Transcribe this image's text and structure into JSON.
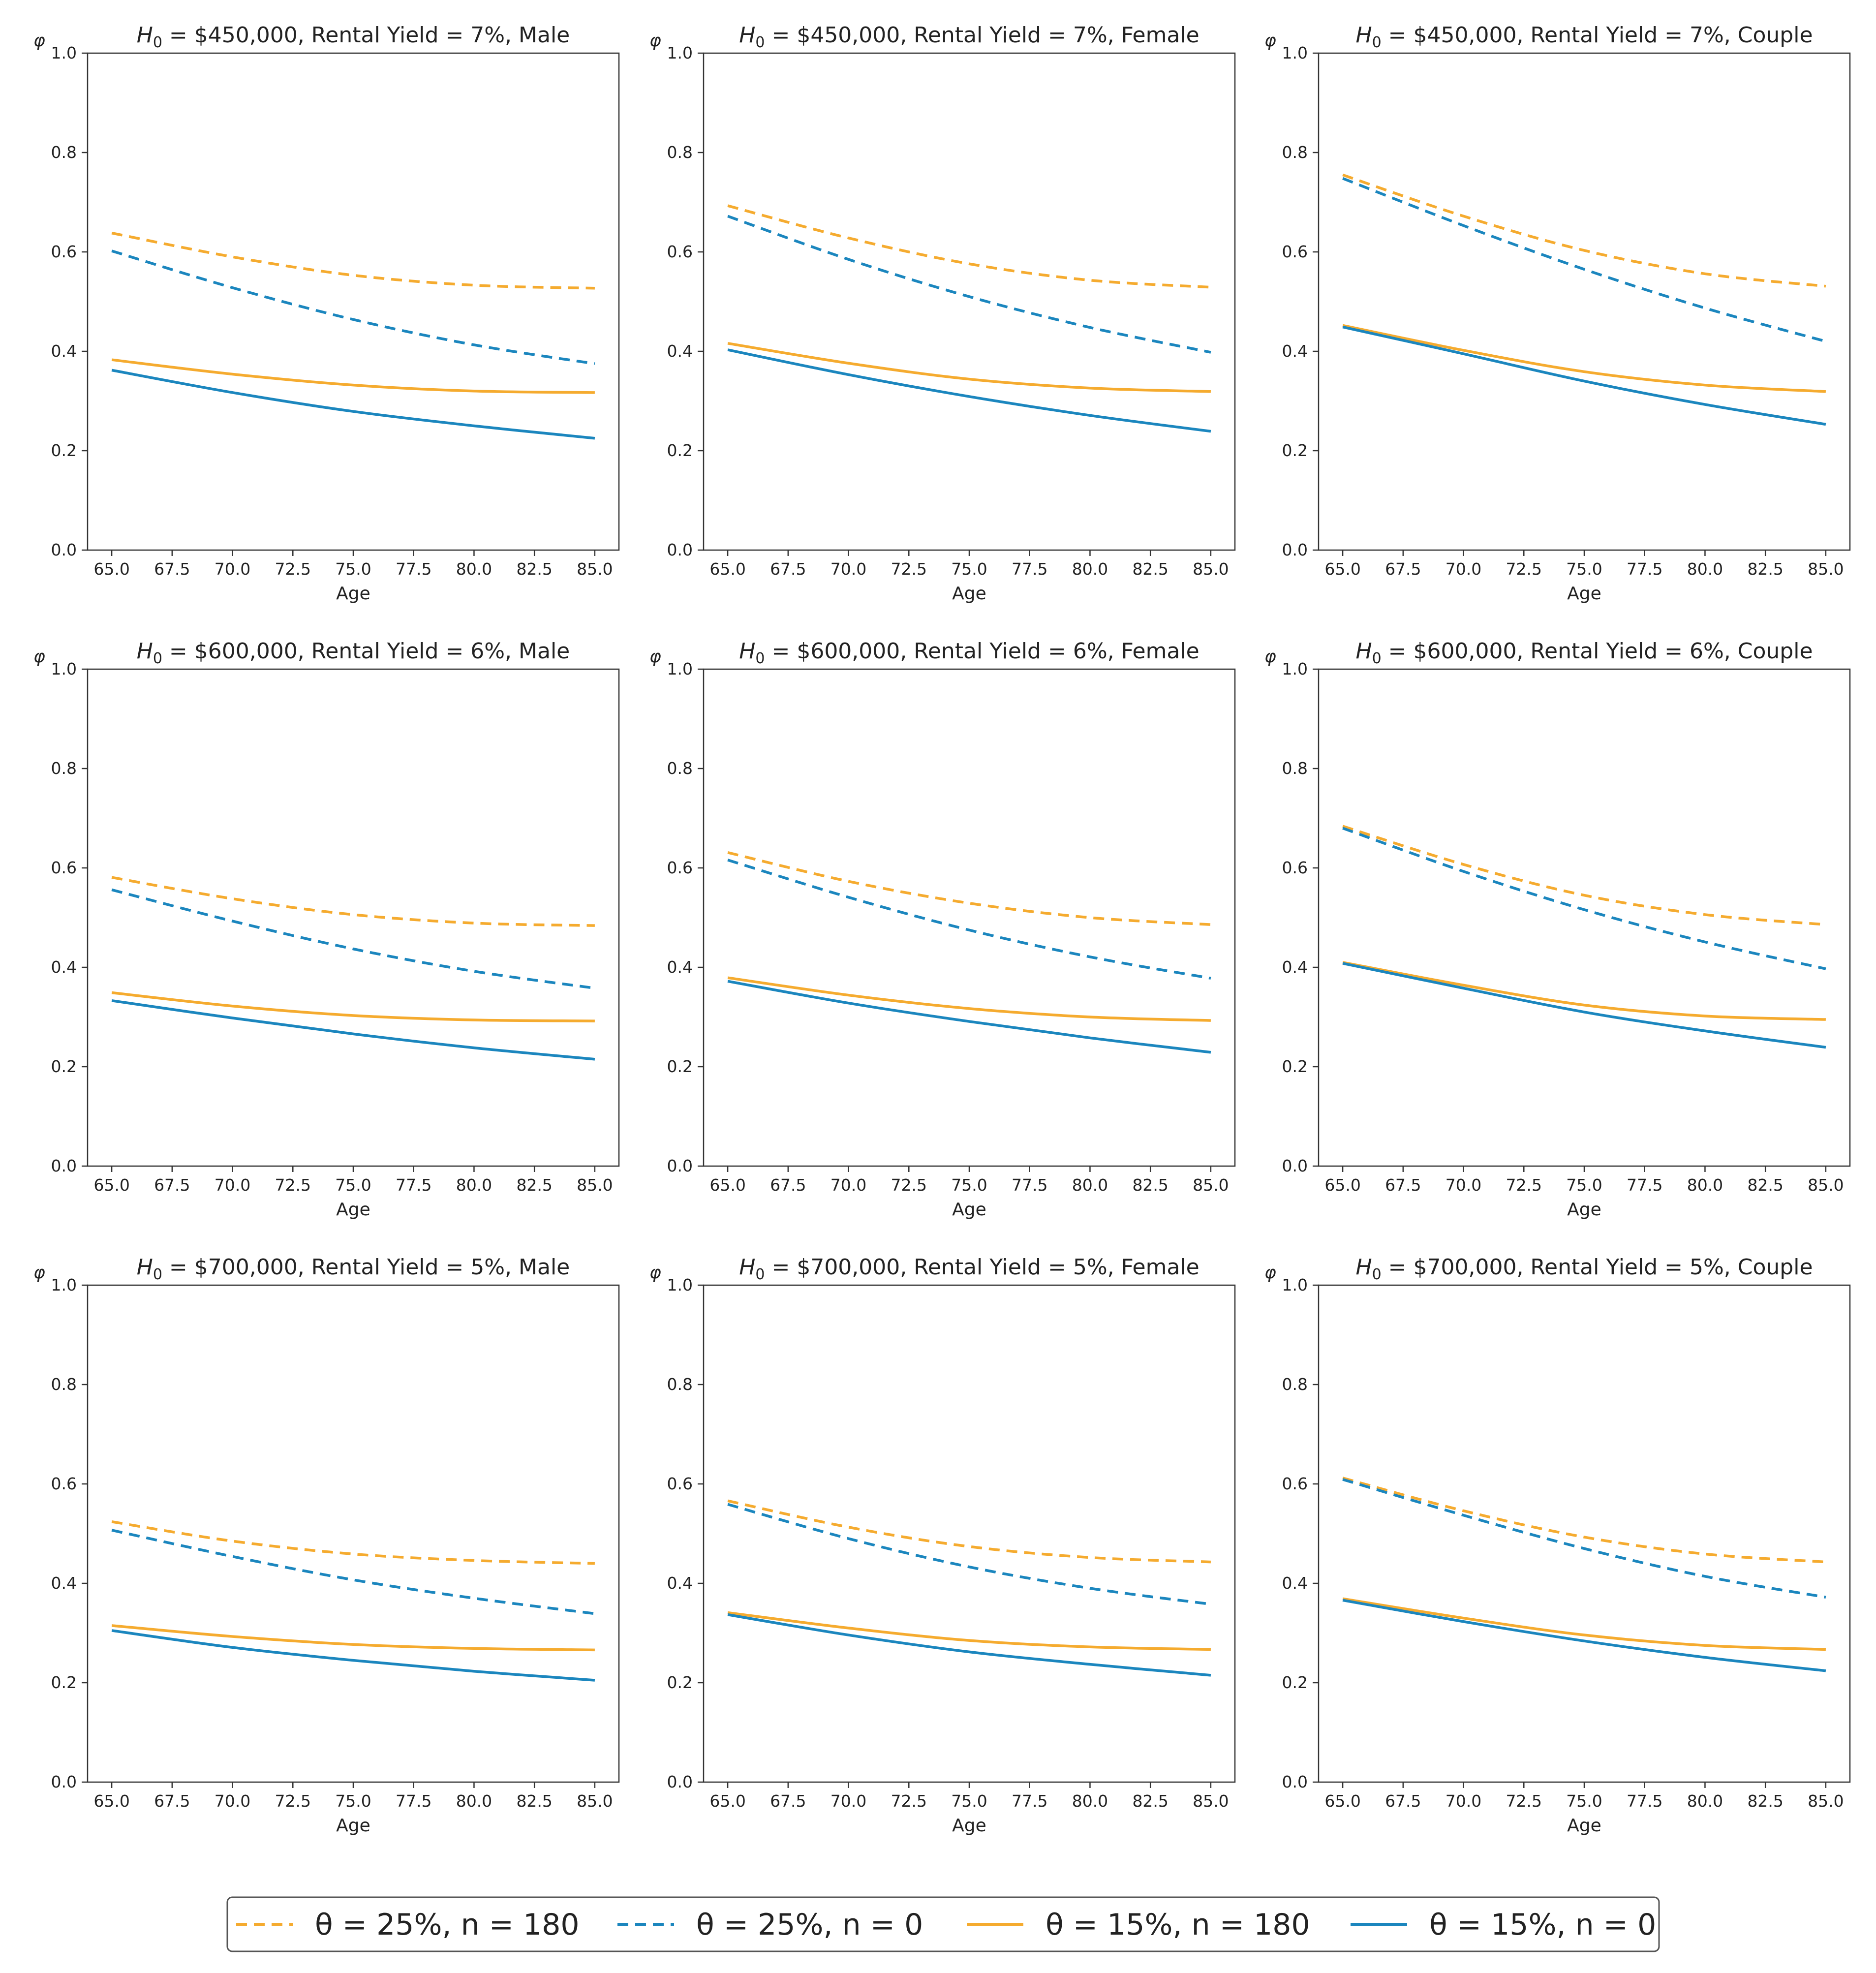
{
  "chart_data": [
    {
      "type": "line",
      "title_prefix": "H",
      "title_sub": "0",
      "title_rest": " = $450,000, Rental Yield = 7%, Male",
      "xlabel": "Age",
      "ylabel": "φ",
      "xlim": [
        64,
        86
      ],
      "ylim": [
        0,
        1.0
      ],
      "xticks": [
        "65.0",
        "67.5",
        "70.0",
        "72.5",
        "75.0",
        "77.5",
        "80.0",
        "82.5",
        "85.0"
      ],
      "yticks": [
        "0.0",
        "0.2",
        "0.4",
        "0.6",
        "0.8",
        "1.0"
      ],
      "x": [
        65,
        70,
        75,
        80,
        85
      ],
      "series": [
        {
          "name": "θ = 25%, n = 180",
          "values": [
            0.638,
            0.59,
            0.553,
            0.533,
            0.527
          ]
        },
        {
          "name": "θ = 25%, n = 0",
          "values": [
            0.602,
            0.528,
            0.464,
            0.413,
            0.375
          ]
        },
        {
          "name": "θ = 15%, n = 180",
          "values": [
            0.383,
            0.354,
            0.332,
            0.32,
            0.317
          ]
        },
        {
          "name": "θ = 15%, n = 0",
          "values": [
            0.362,
            0.317,
            0.279,
            0.25,
            0.225
          ]
        }
      ]
    },
    {
      "type": "line",
      "title_prefix": "H",
      "title_sub": "0",
      "title_rest": " = $450,000, Rental Yield = 7%, Female",
      "xlabel": "Age",
      "ylabel": "φ",
      "xlim": [
        64,
        86
      ],
      "ylim": [
        0,
        1.0
      ],
      "xticks": [
        "65.0",
        "67.5",
        "70.0",
        "72.5",
        "75.0",
        "77.5",
        "80.0",
        "82.5",
        "85.0"
      ],
      "yticks": [
        "0.0",
        "0.2",
        "0.4",
        "0.6",
        "0.8",
        "1.0"
      ],
      "x": [
        65,
        70,
        75,
        80,
        85
      ],
      "series": [
        {
          "name": "θ = 25%, n = 180",
          "values": [
            0.693,
            0.628,
            0.576,
            0.543,
            0.529
          ]
        },
        {
          "name": "θ = 25%, n = 0",
          "values": [
            0.672,
            0.585,
            0.51,
            0.448,
            0.398
          ]
        },
        {
          "name": "θ = 15%, n = 180",
          "values": [
            0.416,
            0.376,
            0.344,
            0.326,
            0.319
          ]
        },
        {
          "name": "θ = 15%, n = 0",
          "values": [
            0.403,
            0.353,
            0.309,
            0.271,
            0.239
          ]
        }
      ]
    },
    {
      "type": "line",
      "title_prefix": "H",
      "title_sub": "0",
      "title_rest": " = $450,000, Rental Yield = 7%, Couple",
      "xlabel": "Age",
      "ylabel": "φ",
      "xlim": [
        64,
        86
      ],
      "ylim": [
        0,
        1.0
      ],
      "xticks": [
        "65.0",
        "67.5",
        "70.0",
        "72.5",
        "75.0",
        "77.5",
        "80.0",
        "82.5",
        "85.0"
      ],
      "yticks": [
        "0.0",
        "0.2",
        "0.4",
        "0.6",
        "0.8",
        "1.0"
      ],
      "x": [
        65,
        70,
        75,
        80,
        85
      ],
      "series": [
        {
          "name": "θ = 25%, n = 180",
          "values": [
            0.755,
            0.672,
            0.603,
            0.556,
            0.531
          ]
        },
        {
          "name": "θ = 25%, n = 0",
          "values": [
            0.748,
            0.653,
            0.565,
            0.487,
            0.42
          ]
        },
        {
          "name": "θ = 15%, n = 180",
          "values": [
            0.452,
            0.402,
            0.359,
            0.332,
            0.319
          ]
        },
        {
          "name": "θ = 15%, n = 0",
          "values": [
            0.449,
            0.395,
            0.34,
            0.293,
            0.253
          ]
        }
      ]
    },
    {
      "type": "line",
      "title_prefix": "H",
      "title_sub": "0",
      "title_rest": " = $600,000, Rental Yield = 6%, Male",
      "xlabel": "Age",
      "ylabel": "φ",
      "xlim": [
        64,
        86
      ],
      "ylim": [
        0,
        1.0
      ],
      "xticks": [
        "65.0",
        "67.5",
        "70.0",
        "72.5",
        "75.0",
        "77.5",
        "80.0",
        "82.5",
        "85.0"
      ],
      "yticks": [
        "0.0",
        "0.2",
        "0.4",
        "0.6",
        "0.8",
        "1.0"
      ],
      "x": [
        65,
        70,
        75,
        80,
        85
      ],
      "series": [
        {
          "name": "θ = 25%, n = 180",
          "values": [
            0.581,
            0.538,
            0.506,
            0.489,
            0.484
          ]
        },
        {
          "name": "θ = 25%, n = 0",
          "values": [
            0.556,
            0.493,
            0.437,
            0.392,
            0.358
          ]
        },
        {
          "name": "θ = 15%, n = 180",
          "values": [
            0.349,
            0.322,
            0.303,
            0.294,
            0.292
          ]
        },
        {
          "name": "θ = 15%, n = 0",
          "values": [
            0.333,
            0.298,
            0.266,
            0.238,
            0.215
          ]
        }
      ]
    },
    {
      "type": "line",
      "title_prefix": "H",
      "title_sub": "0",
      "title_rest": " = $600,000, Rental Yield = 6%, Female",
      "xlabel": "Age",
      "ylabel": "φ",
      "xlim": [
        64,
        86
      ],
      "ylim": [
        0,
        1.0
      ],
      "xticks": [
        "65.0",
        "67.5",
        "70.0",
        "72.5",
        "75.0",
        "77.5",
        "80.0",
        "82.5",
        "85.0"
      ],
      "yticks": [
        "0.0",
        "0.2",
        "0.4",
        "0.6",
        "0.8",
        "1.0"
      ],
      "x": [
        65,
        70,
        75,
        80,
        85
      ],
      "series": [
        {
          "name": "θ = 25%, n = 180",
          "values": [
            0.631,
            0.573,
            0.529,
            0.5,
            0.486
          ]
        },
        {
          "name": "θ = 25%, n = 0",
          "values": [
            0.616,
            0.541,
            0.475,
            0.421,
            0.378
          ]
        },
        {
          "name": "θ = 15%, n = 180",
          "values": [
            0.379,
            0.344,
            0.317,
            0.3,
            0.293
          ]
        },
        {
          "name": "θ = 15%, n = 0",
          "values": [
            0.372,
            0.328,
            0.291,
            0.258,
            0.229
          ]
        }
      ]
    },
    {
      "type": "line",
      "title_prefix": "H",
      "title_sub": "0",
      "title_rest": " = $600,000, Rental Yield = 6%, Couple",
      "xlabel": "Age",
      "ylabel": "φ",
      "xlim": [
        64,
        86
      ],
      "ylim": [
        0,
        1.0
      ],
      "xticks": [
        "65.0",
        "67.5",
        "70.0",
        "72.5",
        "75.0",
        "77.5",
        "80.0",
        "82.5",
        "85.0"
      ],
      "yticks": [
        "0.0",
        "0.2",
        "0.4",
        "0.6",
        "0.8",
        "1.0"
      ],
      "x": [
        65,
        70,
        75,
        80,
        85
      ],
      "series": [
        {
          "name": "θ = 25%, n = 180",
          "values": [
            0.684,
            0.607,
            0.545,
            0.506,
            0.486
          ]
        },
        {
          "name": "θ = 25%, n = 0",
          "values": [
            0.68,
            0.593,
            0.516,
            0.451,
            0.397
          ]
        },
        {
          "name": "θ = 15%, n = 180",
          "values": [
            0.41,
            0.364,
            0.324,
            0.302,
            0.295
          ]
        },
        {
          "name": "θ = 15%, n = 0",
          "values": [
            0.408,
            0.358,
            0.31,
            0.272,
            0.239
          ]
        }
      ]
    },
    {
      "type": "line",
      "title_prefix": "H",
      "title_sub": "0",
      "title_rest": " = $700,000, Rental Yield = 5%, Male",
      "xlabel": "Age",
      "ylabel": "φ",
      "xlim": [
        64,
        86
      ],
      "ylim": [
        0,
        1.0
      ],
      "xticks": [
        "65.0",
        "67.5",
        "70.0",
        "72.5",
        "75.0",
        "77.5",
        "80.0",
        "82.5",
        "85.0"
      ],
      "yticks": [
        "0.0",
        "0.2",
        "0.4",
        "0.6",
        "0.8",
        "1.0"
      ],
      "x": [
        65,
        70,
        75,
        80,
        85
      ],
      "series": [
        {
          "name": "θ = 25%, n = 180",
          "values": [
            0.524,
            0.485,
            0.459,
            0.446,
            0.44
          ]
        },
        {
          "name": "θ = 25%, n = 0",
          "values": [
            0.507,
            0.454,
            0.407,
            0.37,
            0.339
          ]
        },
        {
          "name": "θ = 15%, n = 180",
          "values": [
            0.315,
            0.293,
            0.277,
            0.269,
            0.266
          ]
        },
        {
          "name": "θ = 15%, n = 0",
          "values": [
            0.305,
            0.271,
            0.245,
            0.223,
            0.205
          ]
        }
      ]
    },
    {
      "type": "line",
      "title_prefix": "H",
      "title_sub": "0",
      "title_rest": " = $700,000, Rental Yield = 5%, Female",
      "xlabel": "Age",
      "ylabel": "φ",
      "xlim": [
        64,
        86
      ],
      "ylim": [
        0,
        1.0
      ],
      "xticks": [
        "65.0",
        "67.5",
        "70.0",
        "72.5",
        "75.0",
        "77.5",
        "80.0",
        "82.5",
        "85.0"
      ],
      "yticks": [
        "0.0",
        "0.2",
        "0.4",
        "0.6",
        "0.8",
        "1.0"
      ],
      "x": [
        65,
        70,
        75,
        80,
        85
      ],
      "series": [
        {
          "name": "θ = 25%, n = 180",
          "values": [
            0.566,
            0.513,
            0.474,
            0.452,
            0.443
          ]
        },
        {
          "name": "θ = 25%, n = 0",
          "values": [
            0.559,
            0.49,
            0.433,
            0.39,
            0.358
          ]
        },
        {
          "name": "θ = 15%, n = 180",
          "values": [
            0.341,
            0.31,
            0.285,
            0.272,
            0.267
          ]
        },
        {
          "name": "θ = 15%, n = 0",
          "values": [
            0.337,
            0.296,
            0.262,
            0.237,
            0.215
          ]
        }
      ]
    },
    {
      "type": "line",
      "title_prefix": "H",
      "title_sub": "0",
      "title_rest": " = $700,000, Rental Yield = 5%, Couple",
      "xlabel": "Age",
      "ylabel": "φ",
      "xlim": [
        64,
        86
      ],
      "ylim": [
        0,
        1.0
      ],
      "xticks": [
        "65.0",
        "67.5",
        "70.0",
        "72.5",
        "75.0",
        "77.5",
        "80.0",
        "82.5",
        "85.0"
      ],
      "yticks": [
        "0.0",
        "0.2",
        "0.4",
        "0.6",
        "0.8",
        "1.0"
      ],
      "x": [
        65,
        70,
        75,
        80,
        85
      ],
      "series": [
        {
          "name": "θ = 25%, n = 180",
          "values": [
            0.612,
            0.546,
            0.493,
            0.459,
            0.443
          ]
        },
        {
          "name": "θ = 25%, n = 0",
          "values": [
            0.609,
            0.537,
            0.47,
            0.414,
            0.372
          ]
        },
        {
          "name": "θ = 15%, n = 180",
          "values": [
            0.369,
            0.33,
            0.296,
            0.275,
            0.267
          ]
        },
        {
          "name": "θ = 15%, n = 0",
          "values": [
            0.366,
            0.323,
            0.284,
            0.251,
            0.224
          ]
        }
      ]
    }
  ],
  "legend": {
    "placement": "bottom-center",
    "entries": [
      {
        "label": "θ = 25%, n = 180",
        "color": "#f5ab2f",
        "style": "dashed"
      },
      {
        "label": "θ = 25%, n = 0",
        "color": "#1b86be",
        "style": "dashed"
      },
      {
        "label": "θ = 15%, n = 180",
        "color": "#f5ab2f",
        "style": "solid"
      },
      {
        "label": "θ = 15%, n = 0",
        "color": "#1b86be",
        "style": "solid"
      }
    ]
  },
  "colors": {
    "orange": "#f5ab2f",
    "blue": "#1b86be",
    "axis": "#333333"
  }
}
